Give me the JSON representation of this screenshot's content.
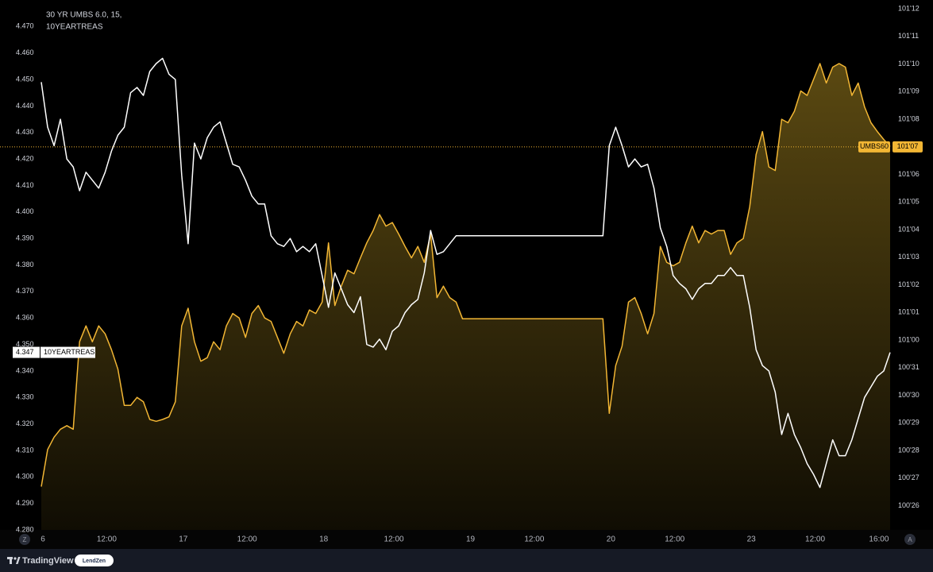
{
  "chart_data": {
    "type": "line",
    "title": "30 YR UMBS 6.0, 15,",
    "subtitle": "10YEARTREAS",
    "x": [
      0,
      1,
      2,
      3,
      4,
      5,
      6,
      7,
      8,
      9,
      10,
      11,
      12,
      13,
      14,
      15,
      16,
      17,
      18,
      19,
      20,
      21,
      22,
      23,
      24,
      25,
      26,
      27,
      28,
      29,
      30,
      31,
      32,
      33,
      34,
      35,
      36,
      37,
      38,
      39,
      40,
      41,
      42,
      43,
      44,
      45,
      46,
      47,
      48,
      49,
      50,
      51,
      52,
      53,
      54,
      55,
      56,
      57,
      58,
      59,
      60,
      61,
      62,
      63,
      64,
      65,
      66,
      67,
      68,
      69,
      70,
      71,
      72,
      73,
      74,
      75,
      76,
      77,
      78,
      79,
      80,
      81,
      82,
      83,
      84,
      85,
      86,
      87,
      88,
      89,
      90,
      91,
      92,
      93,
      94,
      95,
      96,
      97,
      98,
      99,
      100,
      101,
      102,
      103,
      104,
      105,
      106,
      107,
      108,
      109,
      110,
      111,
      112,
      113,
      114,
      115,
      116,
      117,
      118,
      119,
      120,
      121,
      122,
      123,
      124,
      125,
      126,
      127,
      128,
      129,
      130,
      131,
      132,
      133
    ],
    "xlim": [
      0,
      133
    ],
    "xticks": [
      {
        "value": 0,
        "label": "6"
      },
      {
        "value": 10,
        "label": "12:00"
      },
      {
        "value": 22,
        "label": "17"
      },
      {
        "value": 32,
        "label": "12:00"
      },
      {
        "value": 44,
        "label": "18"
      },
      {
        "value": 55,
        "label": "12:00"
      },
      {
        "value": 67,
        "label": "19"
      },
      {
        "value": 77,
        "label": "12:00"
      },
      {
        "value": 89,
        "label": "20"
      },
      {
        "value": 99,
        "label": "12:00"
      },
      {
        "value": 111,
        "label": "23"
      },
      {
        "value": 121,
        "label": "12:00"
      },
      {
        "value": 131,
        "label": "16:00"
      }
    ],
    "ylim": [
      4.28,
      4.48
    ],
    "yticks": [
      {
        "value": 4.28,
        "label": "4.280"
      },
      {
        "value": 4.29,
        "label": "4.290"
      },
      {
        "value": 4.3,
        "label": "4.300"
      },
      {
        "value": 4.31,
        "label": "4.310"
      },
      {
        "value": 4.32,
        "label": "4.320"
      },
      {
        "value": 4.33,
        "label": "4.330"
      },
      {
        "value": 4.34,
        "label": "4.340"
      },
      {
        "value": 4.35,
        "label": "4.350"
      },
      {
        "value": 4.36,
        "label": "4.360"
      },
      {
        "value": 4.37,
        "label": "4.370"
      },
      {
        "value": 4.38,
        "label": "4.380"
      },
      {
        "value": 4.39,
        "label": "4.390"
      },
      {
        "value": 4.4,
        "label": "4.400"
      },
      {
        "value": 4.41,
        "label": "4.410"
      },
      {
        "value": 4.42,
        "label": "4.420"
      },
      {
        "value": 4.43,
        "label": "4.430"
      },
      {
        "value": 4.44,
        "label": "4.440"
      },
      {
        "value": 4.45,
        "label": "4.450"
      },
      {
        "value": 4.46,
        "label": "4.460"
      },
      {
        "value": 4.47,
        "label": "4.470"
      }
    ],
    "y2lim": [
      100.785,
      101.385
    ],
    "y2ticks": [
      {
        "value": 100.8125,
        "label": "100'26"
      },
      {
        "value": 100.84375,
        "label": "100'27"
      },
      {
        "value": 100.875,
        "label": "100'28"
      },
      {
        "value": 100.90625,
        "label": "100'29"
      },
      {
        "value": 100.9375,
        "label": "100'30"
      },
      {
        "value": 100.96875,
        "label": "100'31"
      },
      {
        "value": 101.0,
        "label": "101'00"
      },
      {
        "value": 101.03125,
        "label": "101'01"
      },
      {
        "value": 101.0625,
        "label": "101'02"
      },
      {
        "value": 101.09375,
        "label": "101'03"
      },
      {
        "value": 101.125,
        "label": "101'04"
      },
      {
        "value": 101.15625,
        "label": "101'05"
      },
      {
        "value": 101.1875,
        "label": "101'06"
      },
      {
        "value": 101.21875,
        "label": "101'07"
      },
      {
        "value": 101.25,
        "label": "101'08"
      },
      {
        "value": 101.28125,
        "label": "101'09"
      },
      {
        "value": 101.3125,
        "label": "101'10"
      },
      {
        "value": 101.34375,
        "label": "101'11"
      },
      {
        "value": 101.375,
        "label": "101'12"
      }
    ],
    "grid": false,
    "series": [
      {
        "name": "UMBS60",
        "color": "#f2b634",
        "kind": "area",
        "axis": "y2",
        "last": {
          "value": 101.21875,
          "label": "101'07"
        },
        "values": [
          100.834,
          100.876,
          100.89,
          100.899,
          100.903,
          100.899,
          100.998,
          101.016,
          100.998,
          101.016,
          101.007,
          100.989,
          100.967,
          100.926,
          100.926,
          100.935,
          100.93,
          100.91,
          100.908,
          100.91,
          100.913,
          100.93,
          101.016,
          101.036,
          100.998,
          100.976,
          100.98,
          100.998,
          100.989,
          101.016,
          101.03,
          101.025,
          101.003,
          101.03,
          101.039,
          101.025,
          101.021,
          101.003,
          100.985,
          101.007,
          101.021,
          101.016,
          101.034,
          101.03,
          101.043,
          101.11,
          101.039,
          101.061,
          101.079,
          101.075,
          101.093,
          101.11,
          101.124,
          101.142,
          101.129,
          101.133,
          101.12,
          101.106,
          101.093,
          101.106,
          101.088,
          101.12,
          101.048,
          101.061,
          101.048,
          101.043,
          101.024,
          101.024,
          101.024,
          101.024,
          101.024,
          101.024,
          101.024,
          101.024,
          101.024,
          101.024,
          101.024,
          101.024,
          101.024,
          101.024,
          101.024,
          101.024,
          101.024,
          101.024,
          101.024,
          101.024,
          101.024,
          101.024,
          101.024,
          100.917,
          100.971,
          100.993,
          101.043,
          101.048,
          101.03,
          101.007,
          101.03,
          101.106,
          101.088,
          101.084,
          101.088,
          101.11,
          101.129,
          101.11,
          101.124,
          101.12,
          101.124,
          101.124,
          101.097,
          101.11,
          101.115,
          101.151,
          101.21,
          101.236,
          101.196,
          101.192,
          101.25,
          101.246,
          101.259,
          101.282,
          101.277,
          101.295,
          101.313,
          101.291,
          101.309,
          101.313,
          101.309,
          101.277,
          101.291,
          101.264,
          101.246,
          101.236,
          101.227,
          101.219
        ]
      },
      {
        "name": "10YEARTREAS",
        "color": "#ffffff",
        "kind": "line",
        "axis": "y",
        "last": 4.347,
        "values": [
          4.449,
          4.432,
          4.425,
          4.435,
          4.42,
          4.417,
          4.408,
          4.415,
          4.412,
          4.409,
          4.415,
          4.423,
          4.429,
          4.432,
          4.445,
          4.447,
          4.444,
          4.453,
          4.456,
          4.458,
          4.452,
          4.45,
          4.414,
          4.388,
          4.426,
          4.42,
          4.428,
          4.432,
          4.434,
          4.426,
          4.418,
          4.417,
          4.412,
          4.406,
          4.403,
          4.403,
          4.391,
          4.388,
          4.387,
          4.39,
          4.385,
          4.387,
          4.385,
          4.388,
          4.376,
          4.364,
          4.377,
          4.371,
          4.365,
          4.362,
          4.368,
          4.35,
          4.349,
          4.352,
          4.348,
          4.355,
          4.357,
          4.362,
          4.365,
          4.367,
          4.377,
          4.393,
          4.384,
          4.385,
          4.388,
          4.391,
          4.391,
          4.391,
          4.391,
          4.391,
          4.391,
          4.391,
          4.391,
          4.391,
          4.391,
          4.391,
          4.391,
          4.391,
          4.391,
          4.391,
          4.391,
          4.391,
          4.391,
          4.391,
          4.391,
          4.391,
          4.391,
          4.391,
          4.391,
          4.425,
          4.432,
          4.425,
          4.417,
          4.42,
          4.417,
          4.418,
          4.409,
          4.394,
          4.387,
          4.376,
          4.373,
          4.371,
          4.367,
          4.371,
          4.373,
          4.373,
          4.376,
          4.376,
          4.379,
          4.376,
          4.376,
          4.364,
          4.348,
          4.342,
          4.34,
          4.332,
          4.316,
          4.324,
          4.316,
          4.311,
          4.305,
          4.301,
          4.296,
          4.305,
          4.314,
          4.308,
          4.308,
          4.314,
          4.322,
          4.33,
          4.334,
          4.338,
          4.34,
          4.347
        ]
      }
    ]
  },
  "axis_buttons": [
    "Z",
    "A"
  ],
  "footer": {
    "brand": "TradingView",
    "badge": "LendZen"
  }
}
